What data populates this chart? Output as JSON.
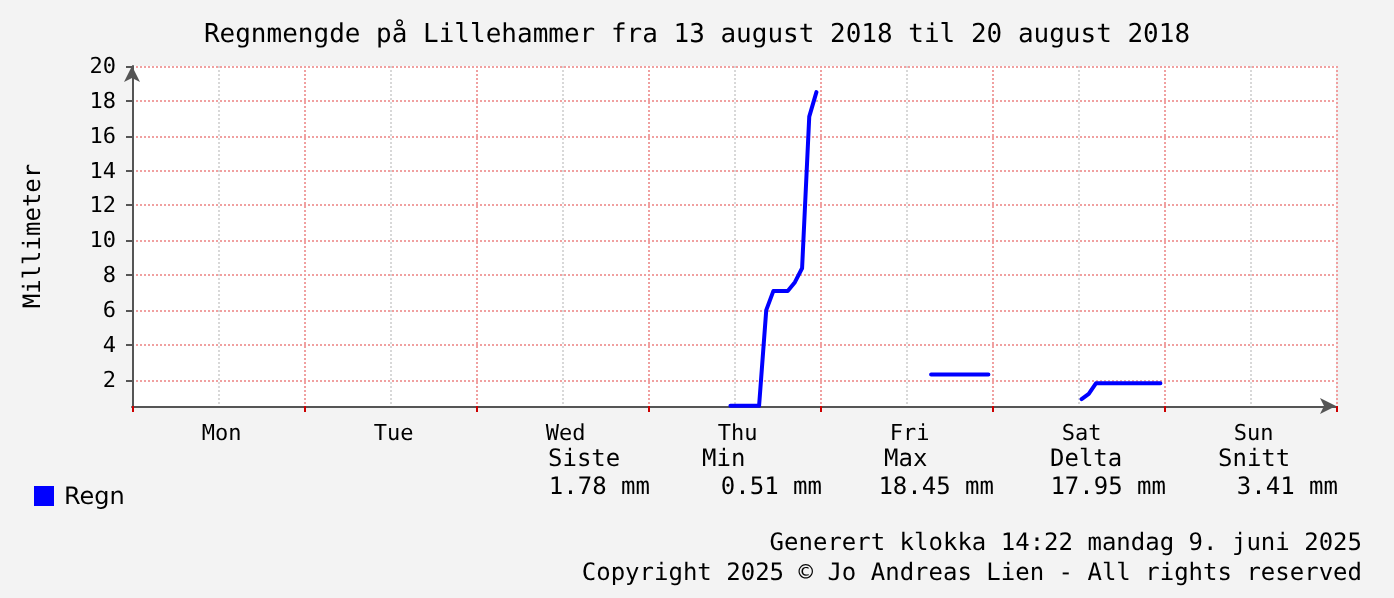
{
  "chart_data": {
    "type": "line",
    "title": "Regnmengde på Lillehammer fra 13 august 2018 til 20 august 2018",
    "ylabel": "Millimeter",
    "categories": [
      null,
      null,
      null,
      null,
      null,
      null,
      null,
      null,
      null,
      null,
      null,
      null,
      "Mon",
      null,
      null,
      null,
      null,
      null,
      null,
      null,
      null,
      null,
      null,
      null,
      null,
      null,
      null,
      null,
      null,
      null,
      null,
      null,
      null,
      null,
      null,
      null,
      "Tue",
      null,
      null,
      null,
      null,
      null,
      null,
      null,
      null,
      null,
      null,
      null,
      null,
      null,
      null,
      null,
      null,
      null,
      null,
      null,
      null,
      null,
      null,
      null,
      "Wed",
      null,
      null,
      null,
      null,
      null,
      null,
      null,
      null,
      null,
      null,
      null,
      null,
      null,
      null,
      null,
      null,
      null,
      null,
      null,
      null,
      null,
      null,
      null,
      "Thu",
      null,
      null,
      null,
      null,
      null,
      null,
      null,
      null,
      null,
      null,
      null,
      null,
      null,
      null,
      null,
      null,
      null,
      null,
      null,
      null,
      null,
      null,
      null,
      "Fri",
      null,
      null,
      null,
      null,
      null,
      null,
      null,
      null,
      null,
      null,
      null,
      null,
      null,
      null,
      null,
      null,
      null,
      null,
      null,
      null,
      null,
      null,
      null,
      "Sat",
      null,
      null,
      null,
      null,
      null,
      null,
      null,
      null,
      null,
      null,
      null,
      null,
      null,
      null,
      null,
      null,
      null,
      null,
      null,
      null,
      null,
      null,
      null,
      "Sun",
      null,
      null,
      null,
      null,
      null,
      null,
      null,
      null,
      null,
      null,
      null
    ],
    "ylim": [
      0.5,
      20
    ],
    "yticks": [
      2,
      4,
      6,
      8,
      10,
      12,
      14,
      16,
      18,
      20
    ],
    "grid": true,
    "legend": "bottom left",
    "marker": "none",
    "line_style": "solid",
    "series": [
      {
        "name": "Regn",
        "color": "#0000ff",
        "values": [
          null,
          null,
          null,
          null,
          null,
          null,
          null,
          null,
          null,
          null,
          null,
          null,
          null,
          null,
          null,
          null,
          null,
          null,
          null,
          null,
          null,
          null,
          null,
          null,
          null,
          null,
          null,
          null,
          null,
          null,
          null,
          null,
          null,
          null,
          null,
          null,
          null,
          null,
          null,
          null,
          null,
          null,
          null,
          null,
          null,
          null,
          null,
          null,
          null,
          null,
          null,
          null,
          null,
          null,
          null,
          null,
          null,
          null,
          null,
          null,
          null,
          null,
          null,
          null,
          null,
          null,
          null,
          null,
          null,
          null,
          null,
          null,
          null,
          null,
          null,
          null,
          null,
          null,
          null,
          null,
          null,
          null,
          null,
          0.51,
          0.51,
          0.51,
          0.51,
          0.51,
          6.0,
          7.1,
          7.1,
          7.1,
          7.6,
          8.4,
          17.1,
          18.5,
          null,
          null,
          null,
          null,
          null,
          null,
          null,
          null,
          null,
          null,
          null,
          null,
          null,
          null,
          null,
          2.3,
          2.3,
          2.3,
          2.3,
          2.3,
          2.3,
          2.3,
          2.3,
          2.3,
          null,
          null,
          null,
          null,
          null,
          null,
          null,
          null,
          null,
          null,
          null,
          null,
          0.9,
          1.2,
          1.8,
          1.8,
          1.8,
          1.8,
          1.8,
          1.8,
          1.8,
          1.8,
          1.8,
          1.8,
          null,
          null,
          null,
          null,
          null,
          null,
          null,
          null,
          null,
          null,
          null,
          null,
          null,
          null,
          null,
          null,
          null,
          null,
          null,
          null,
          null,
          null,
          null,
          null
        ]
      }
    ],
    "annotations": [
      "Siste",
      "Min",
      "Max",
      "Delta",
      "Snitt",
      "1.78 mm",
      "0.51 mm",
      "18.45 mm",
      "17.95 mm",
      "3.41 mm",
      "Generert klokka 14:22 mandag 9. juni 2025",
      "Copyright 2025 © Jo Andreas Lien - All rights reserved"
    ]
  }
}
